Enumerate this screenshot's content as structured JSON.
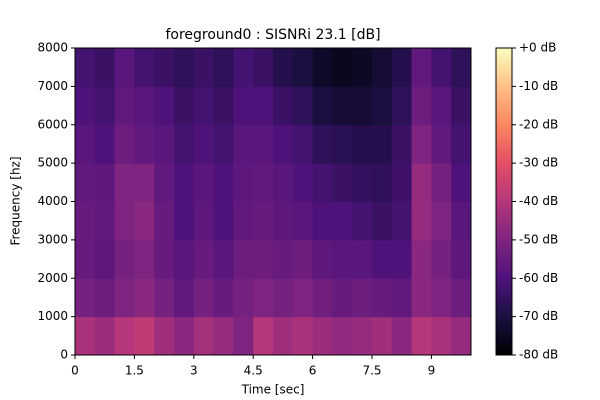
{
  "chart_data": {
    "type": "heatmap",
    "title": "foreground0 : SISNRi 23.1 [dB]",
    "x_label": "Time [sec]",
    "y_label": "Frequency [hz]",
    "xbins": [
      0,
      0.5,
      1,
      1.5,
      2,
      2.5,
      3,
      3.5,
      4,
      4.5,
      5,
      5.5,
      6,
      6.5,
      7,
      7.5,
      8,
      8.5,
      9,
      9.5,
      10
    ],
    "ybins": [
      0,
      1000,
      2000,
      3000,
      4000,
      5000,
      6000,
      7000,
      8000
    ],
    "values": [
      [
        -42,
        -45,
        -40,
        -38,
        -44,
        -48,
        -43,
        -46,
        -50,
        -40,
        -44,
        -42,
        -45,
        -47,
        -46,
        -44,
        -48,
        -40,
        -42,
        -46
      ],
      [
        -52,
        -54,
        -50,
        -48,
        -52,
        -56,
        -52,
        -55,
        -52,
        -50,
        -52,
        -50,
        -53,
        -55,
        -54,
        -55,
        -56,
        -48,
        -50,
        -54
      ],
      [
        -55,
        -57,
        -52,
        -50,
        -55,
        -58,
        -55,
        -58,
        -54,
        -54,
        -55,
        -54,
        -57,
        -58,
        -58,
        -60,
        -60,
        -48,
        -52,
        -57
      ],
      [
        -55,
        -56,
        -50,
        -48,
        -55,
        -60,
        -57,
        -60,
        -56,
        -55,
        -57,
        -58,
        -60,
        -60,
        -62,
        -64,
        -62,
        -46,
        -50,
        -58
      ],
      [
        -56,
        -57,
        -50,
        -50,
        -56,
        -60,
        -58,
        -60,
        -57,
        -56,
        -58,
        -60,
        -62,
        -64,
        -65,
        -66,
        -63,
        -46,
        -52,
        -60
      ],
      [
        -58,
        -60,
        -54,
        -56,
        -58,
        -62,
        -60,
        -62,
        -58,
        -58,
        -60,
        -62,
        -66,
        -67,
        -68,
        -68,
        -64,
        -50,
        -56,
        -62
      ],
      [
        -60,
        -62,
        -56,
        -58,
        -60,
        -64,
        -62,
        -64,
        -60,
        -60,
        -64,
        -66,
        -70,
        -72,
        -72,
        -70,
        -66,
        -54,
        -58,
        -64
      ],
      [
        -62,
        -64,
        -58,
        -62,
        -64,
        -66,
        -64,
        -66,
        -62,
        -64,
        -68,
        -70,
        -74,
        -76,
        -75,
        -72,
        -68,
        -56,
        -62,
        -66
      ]
    ],
    "colormap": "magma",
    "xlim": [
      0,
      10
    ],
    "xticks": [
      0,
      1.5,
      3,
      4.5,
      6,
      7.5,
      9
    ],
    "ylim": [
      0,
      8000
    ],
    "yticks": [
      0,
      1000,
      2000,
      3000,
      4000,
      5000,
      6000,
      7000,
      8000
    ],
    "colorbar": {
      "lim": [
        -80,
        0
      ],
      "ticks": [
        {
          "value": 0,
          "label": "+0 dB"
        },
        {
          "value": -10,
          "label": "-10 dB"
        },
        {
          "value": -20,
          "label": "-20 dB"
        },
        {
          "value": -30,
          "label": "-30 dB"
        },
        {
          "value": -40,
          "label": "-40 dB"
        },
        {
          "value": -50,
          "label": "-50 dB"
        },
        {
          "value": -60,
          "label": "-60 dB"
        },
        {
          "value": -70,
          "label": "-70 dB"
        },
        {
          "value": -80,
          "label": "-80 dB"
        }
      ]
    }
  }
}
